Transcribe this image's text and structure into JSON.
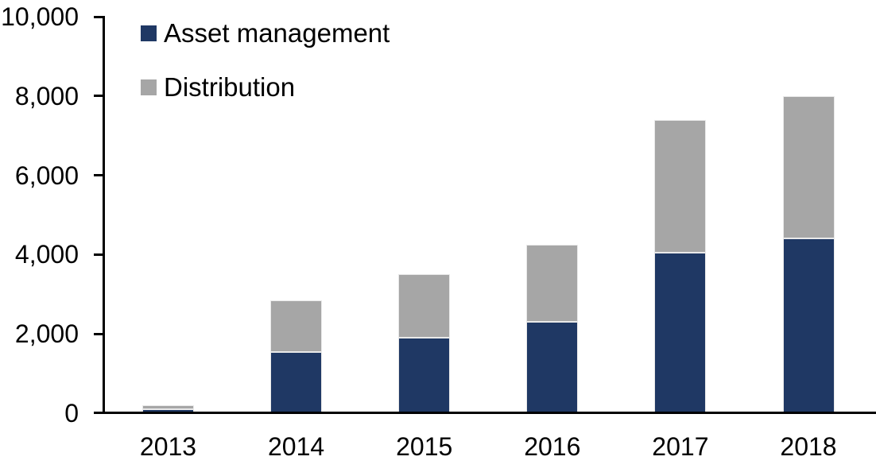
{
  "chart_data": {
    "type": "bar",
    "stacked": true,
    "title": "",
    "categories": [
      "2013",
      "2014",
      "2015",
      "2016",
      "2017",
      "2018"
    ],
    "series": [
      {
        "name": "Asset management",
        "color": "#1F3864",
        "values": [
          100,
          1550,
          1900,
          2300,
          4050,
          4400
        ]
      },
      {
        "name": "Distribution",
        "color": "#A6A6A6",
        "values": [
          100,
          1300,
          1600,
          1950,
          3350,
          3600
        ]
      }
    ],
    "totals": [
      200,
      2850,
      3500,
      4250,
      7400,
      8000
    ],
    "y_axis": {
      "min": 0,
      "max": 10000,
      "tick_interval": 2000,
      "tick_labels": [
        "0",
        "2,000",
        "4,000",
        "6,000",
        "8,000",
        "10,000"
      ]
    },
    "x_axis": {
      "label": ""
    },
    "legend_position": "top-left",
    "grid": false,
    "colors": {
      "axis": "#000000",
      "text": "#000000",
      "bar_border": "#E9E9E9",
      "background": "#FFFFFF"
    }
  }
}
